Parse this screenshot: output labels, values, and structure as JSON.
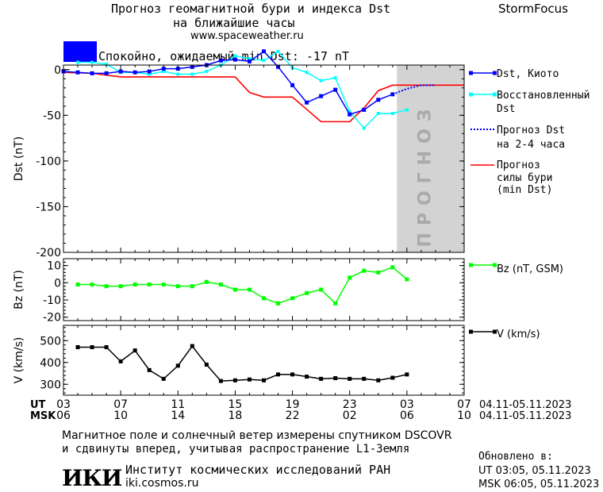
{
  "header": {
    "title_line1": "Прогноз геомагнитной бури и индекса Dst",
    "title_line2": "на ближайшие часы",
    "website": "www.spaceweather.ru",
    "brand": "StormFocus"
  },
  "status": {
    "text": "Спокойно, ожидаемый min Dst: -17 nT",
    "color": "#0000ff"
  },
  "forecast_band": {
    "label": "ПРОГНОЗ"
  },
  "colors": {
    "dst_kyoto": "#0000ff",
    "dst_reconstructed": "#00ffff",
    "dst_forecast": "#0000ff",
    "storm_forecast": "#ff0000",
    "bz": "#00ff00",
    "v": "#000000",
    "forecast_band": "#d3d3d3"
  },
  "chart_data": [
    {
      "type": "line",
      "ylabel": "Dst (nT)",
      "ylim": [
        -200,
        5
      ],
      "yticks": [
        0,
        -50,
        -100,
        -150,
        -200
      ],
      "yticklabels": [
        "0",
        "-50",
        "-100",
        "-150",
        "-200"
      ],
      "x_unit": "hours since 04.11.2023 03:00 UT",
      "xlim": [
        0,
        28
      ],
      "forecast_region": [
        23.3,
        28
      ],
      "series": [
        {
          "name": "Dst, Киото",
          "x": [
            0,
            1,
            2,
            3,
            4,
            5,
            6,
            7,
            8,
            9,
            10,
            11,
            12,
            13,
            14,
            15,
            16,
            17,
            18,
            19,
            20,
            21,
            22,
            23
          ],
          "values": [
            -2,
            -3,
            -4,
            -4,
            -2,
            -3,
            -2,
            1,
            1,
            3,
            5,
            10,
            11,
            9,
            20,
            3,
            -17,
            -36,
            -29,
            -22,
            -49,
            -44,
            -33,
            -27
          ]
        },
        {
          "name": "Восстановленный Dst",
          "x": [
            1,
            2,
            3,
            4,
            5,
            6,
            7,
            8,
            9,
            10,
            11,
            12,
            13,
            14,
            15,
            16,
            17,
            18,
            19,
            20,
            21,
            22,
            23,
            24
          ],
          "values": [
            8,
            8,
            6,
            -3,
            -3,
            -5,
            -2,
            -5,
            -5,
            -2,
            5,
            15,
            12,
            10,
            20,
            2,
            -3,
            -12,
            -9,
            -46,
            -64,
            -48,
            -48,
            -44
          ]
        },
        {
          "name": "Прогноз Dst на 2-4 часа",
          "x": [
            23,
            24,
            25,
            26
          ],
          "values": [
            -27,
            -21,
            -17,
            -17
          ]
        },
        {
          "name": "Прогноз силы бури (min Dst)",
          "x": [
            0,
            2,
            4,
            12,
            13,
            14,
            16,
            18,
            20,
            21,
            22,
            23,
            28
          ],
          "values": [
            -3,
            -4,
            -8,
            -8,
            -25,
            -30,
            -30,
            -57,
            -57,
            -42,
            -23,
            -17,
            -17
          ]
        }
      ],
      "legend": [
        "Dst, Киото",
        "Восстановленный",
        "Dst",
        "Прогноз Dst",
        "на 2-4 часа",
        "Прогноз",
        "силы бури",
        "(min Dst)"
      ]
    },
    {
      "type": "line",
      "ylabel": "Bz (nT)",
      "ylim": [
        -22,
        14
      ],
      "yticks": [
        10,
        0,
        -10,
        -20
      ],
      "yticklabels": [
        "10",
        "0",
        "-10",
        "-20"
      ],
      "xlim": [
        0,
        28
      ],
      "series": [
        {
          "name": "Bz (nT, GSM)",
          "x": [
            1,
            2,
            3,
            4,
            5,
            6,
            7,
            8,
            9,
            10,
            11,
            12,
            13,
            14,
            15,
            16,
            17,
            18,
            19,
            20,
            21,
            22,
            23,
            24
          ],
          "values": [
            -1,
            -1,
            -2,
            -2,
            -1,
            -1,
            -1,
            -2,
            -2,
            0.5,
            -1,
            -4,
            -4,
            -9,
            -12,
            -9,
            -6,
            -4,
            -12,
            3,
            7,
            6,
            9,
            2
          ]
        }
      ],
      "legend": [
        "Bz (nT, GSM)"
      ]
    },
    {
      "type": "line",
      "ylabel": "V (km/s)",
      "ylim": [
        250,
        570
      ],
      "yticks": [
        500,
        400,
        300
      ],
      "yticklabels": [
        "500",
        "400",
        "300"
      ],
      "xlim": [
        0,
        28
      ],
      "series": [
        {
          "name": "V (km/s)",
          "x": [
            1,
            2,
            3,
            4,
            5,
            6,
            7,
            8,
            9,
            10,
            11,
            12,
            13,
            14,
            15,
            16,
            17,
            18,
            19,
            20,
            21,
            22,
            23,
            24
          ],
          "values": [
            470,
            470,
            470,
            405,
            455,
            365,
            325,
            385,
            475,
            390,
            315,
            318,
            322,
            318,
            345,
            345,
            335,
            325,
            328,
            325,
            325,
            318,
            330,
            345
          ]
        }
      ],
      "legend": [
        "V (km/s)"
      ]
    }
  ],
  "time_axis": {
    "ut_label": "UT",
    "msk_label": "MSK",
    "ut_ticks": [
      "03",
      "07",
      "11",
      "15",
      "19",
      "23",
      "03",
      "07"
    ],
    "msk_ticks": [
      "06",
      "10",
      "14",
      "18",
      "22",
      "02",
      "06",
      "10"
    ],
    "ut_range": "04.11-05.11.2023",
    "msk_range": "04.11-05.11.2023"
  },
  "footer": {
    "note_line1": "Магнитное поле и солнечный ветер измерены спутником DSCOVR",
    "note_line2": "и сдвинуты вперед, учитывая распространение L1-Земля",
    "institute_logo": "ИКИ",
    "institute_name": "Институт космических исследований РАН",
    "institute_site": "iki.cosmos.ru",
    "updated_label": "Обновлено в:",
    "updated_ut": "UT  03:05, 05.11.2023",
    "updated_msk": "MSK 06:05, 05.11.2023"
  }
}
